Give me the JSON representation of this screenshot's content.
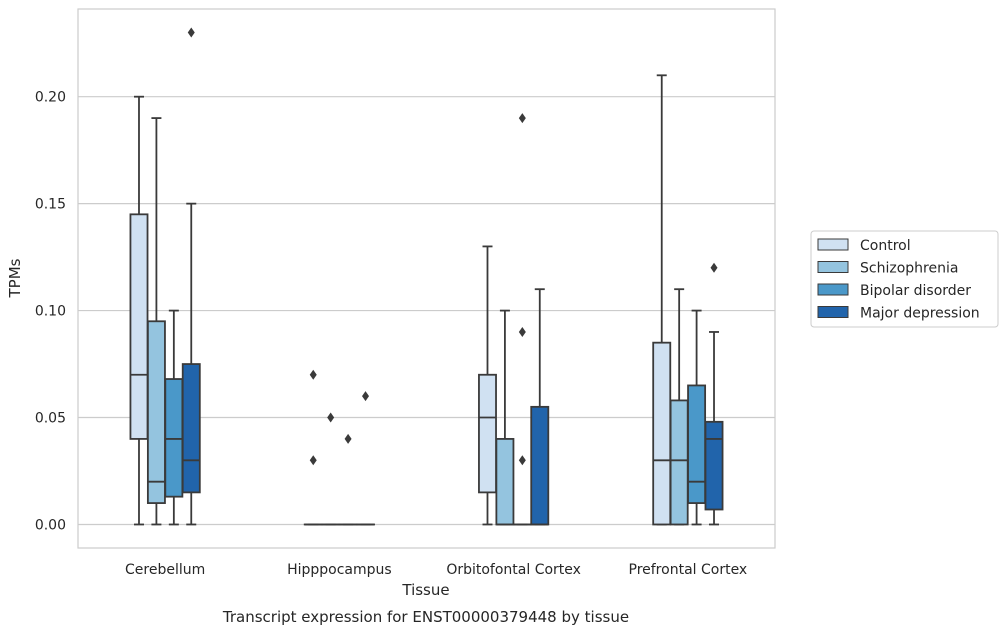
{
  "chart_data": {
    "type": "boxplot",
    "title": "",
    "caption": "Transcript expression for ENST00000379448 by tissue",
    "xlabel": "Tissue",
    "ylabel": "TPMs",
    "ylim": [
      -0.011,
      0.241
    ],
    "yticks": [
      0.0,
      0.05,
      0.1,
      0.15,
      0.2
    ],
    "ytick_labels": [
      "0.00",
      "0.05",
      "0.10",
      "0.15",
      "0.20"
    ],
    "grid": "horizontal",
    "legend_position": "right",
    "categories": [
      "Cerebellum",
      "Hipppocampus",
      "Orbitofontal Cortex",
      "Prefrontal Cortex"
    ],
    "series": [
      {
        "name": "Control",
        "color": "#d0e1f2",
        "boxes": [
          {
            "whislo": 0.0,
            "q1": 0.04,
            "med": 0.07,
            "q3": 0.145,
            "whishi": 0.2,
            "fliers": []
          },
          {
            "whislo": 0.0,
            "q1": 0.0,
            "med": 0.0,
            "q3": 0.0,
            "whishi": 0.0,
            "fliers": [
              0.03,
              0.07
            ]
          },
          {
            "whislo": 0.0,
            "q1": 0.015,
            "med": 0.05,
            "q3": 0.07,
            "whishi": 0.13,
            "fliers": []
          },
          {
            "whislo": 0.0,
            "q1": 0.0,
            "med": 0.03,
            "q3": 0.085,
            "whishi": 0.21,
            "fliers": []
          }
        ]
      },
      {
        "name": "Schizophrenia",
        "color": "#94c4df",
        "boxes": [
          {
            "whislo": 0.0,
            "q1": 0.01,
            "med": 0.02,
            "q3": 0.095,
            "whishi": 0.19,
            "fliers": []
          },
          {
            "whislo": 0.0,
            "q1": 0.0,
            "med": 0.0,
            "q3": 0.0,
            "whishi": 0.0,
            "fliers": [
              0.05
            ]
          },
          {
            "whislo": 0.0,
            "q1": 0.0,
            "med": 0.0,
            "q3": 0.04,
            "whishi": 0.1,
            "fliers": []
          },
          {
            "whislo": 0.0,
            "q1": 0.0,
            "med": 0.03,
            "q3": 0.058,
            "whishi": 0.11,
            "fliers": []
          }
        ]
      },
      {
        "name": "Bipolar disorder",
        "color": "#4a98c9",
        "boxes": [
          {
            "whislo": 0.0,
            "q1": 0.013,
            "med": 0.04,
            "q3": 0.068,
            "whishi": 0.1,
            "fliers": []
          },
          {
            "whislo": 0.0,
            "q1": 0.0,
            "med": 0.0,
            "q3": 0.0,
            "whishi": 0.0,
            "fliers": [
              0.04
            ]
          },
          {
            "whislo": 0.0,
            "q1": 0.0,
            "med": 0.0,
            "q3": 0.0,
            "whishi": 0.0,
            "fliers": [
              0.03,
              0.09,
              0.19
            ]
          },
          {
            "whislo": 0.0,
            "q1": 0.01,
            "med": 0.02,
            "q3": 0.065,
            "whishi": 0.1,
            "fliers": []
          }
        ]
      },
      {
        "name": "Major depression",
        "color": "#2164ab",
        "boxes": [
          {
            "whislo": 0.0,
            "q1": 0.015,
            "med": 0.03,
            "q3": 0.075,
            "whishi": 0.15,
            "fliers": [
              0.23
            ]
          },
          {
            "whislo": 0.0,
            "q1": 0.0,
            "med": 0.0,
            "q3": 0.0,
            "whishi": 0.0,
            "fliers": [
              0.06
            ]
          },
          {
            "whislo": 0.0,
            "q1": 0.0,
            "med": 0.0,
            "q3": 0.055,
            "whishi": 0.11,
            "fliers": []
          },
          {
            "whislo": 0.0,
            "q1": 0.007,
            "med": 0.04,
            "q3": 0.048,
            "whishi": 0.09,
            "fliers": [
              0.12
            ]
          }
        ]
      }
    ],
    "colors": {
      "grid": "#cccccc",
      "frame": "#cccccc",
      "edge": "#3a3a3a",
      "text": "#262626"
    }
  }
}
